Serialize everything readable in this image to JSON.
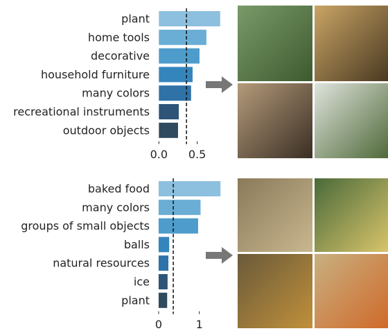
{
  "chart_data": [
    {
      "type": "barh",
      "categories": [
        "plant",
        "home tools",
        "decorative",
        "household furniture",
        "many colors",
        "recreational instruments",
        "outdoor objects"
      ],
      "values": [
        0.8,
        0.62,
        0.53,
        0.44,
        0.42,
        0.26,
        0.25
      ],
      "colors": [
        "#8dc0de",
        "#6aaed6",
        "#4d9ccb",
        "#3585bd",
        "#2f72a8",
        "#2e5478",
        "#2f4a5e"
      ],
      "reference_line": 0.36,
      "xlim": [
        -0.03,
        0.82
      ],
      "xticks": [
        {
          "value": 0,
          "label": "0.0"
        },
        0.5
      ]
    },
    {
      "type": "barh",
      "categories": [
        "baked food",
        "many colors",
        "groups of small objects",
        "balls",
        "natural resources",
        "ice",
        "plant"
      ],
      "values": [
        1.52,
        1.03,
        0.97,
        0.26,
        0.24,
        0.22,
        0.21
      ],
      "colors": [
        "#8dc0de",
        "#6aaed6",
        "#4d9ccb",
        "#3585bd",
        "#2f72a8",
        "#2e5478",
        "#2f4a5e"
      ],
      "reference_line": 0.36,
      "xlim": [
        -0.05,
        1.55
      ],
      "xticks": [
        0,
        1
      ]
    }
  ]
}
